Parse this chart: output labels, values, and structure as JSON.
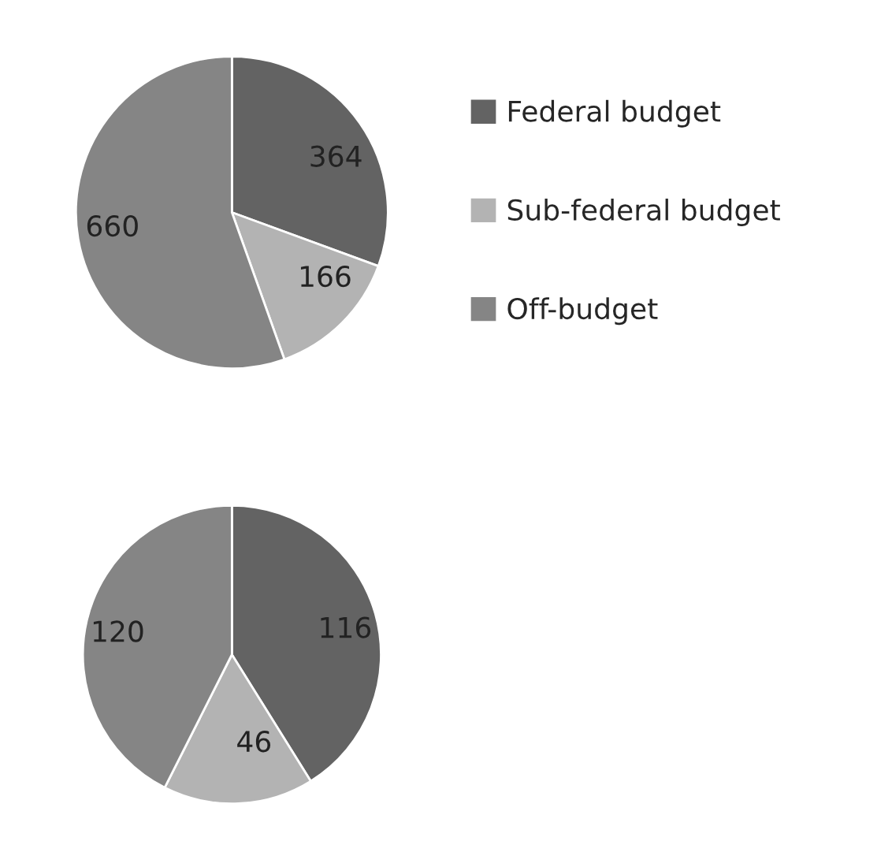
{
  "chart_data": [
    {
      "type": "pie",
      "categories": [
        "Federal budget",
        "Sub-federal budget",
        "Off-budget"
      ],
      "values": [
        364,
        166,
        660
      ],
      "colors": [
        "#636363",
        "#b3b3b3",
        "#858585"
      ],
      "data_labels": true,
      "legend": "right"
    },
    {
      "type": "pie",
      "categories": [
        null,
        null,
        null
      ],
      "values": [
        116,
        46,
        120
      ],
      "colors": [
        "#636363",
        "#b3b3b3",
        "#858585"
      ],
      "data_labels": true
    }
  ]
}
